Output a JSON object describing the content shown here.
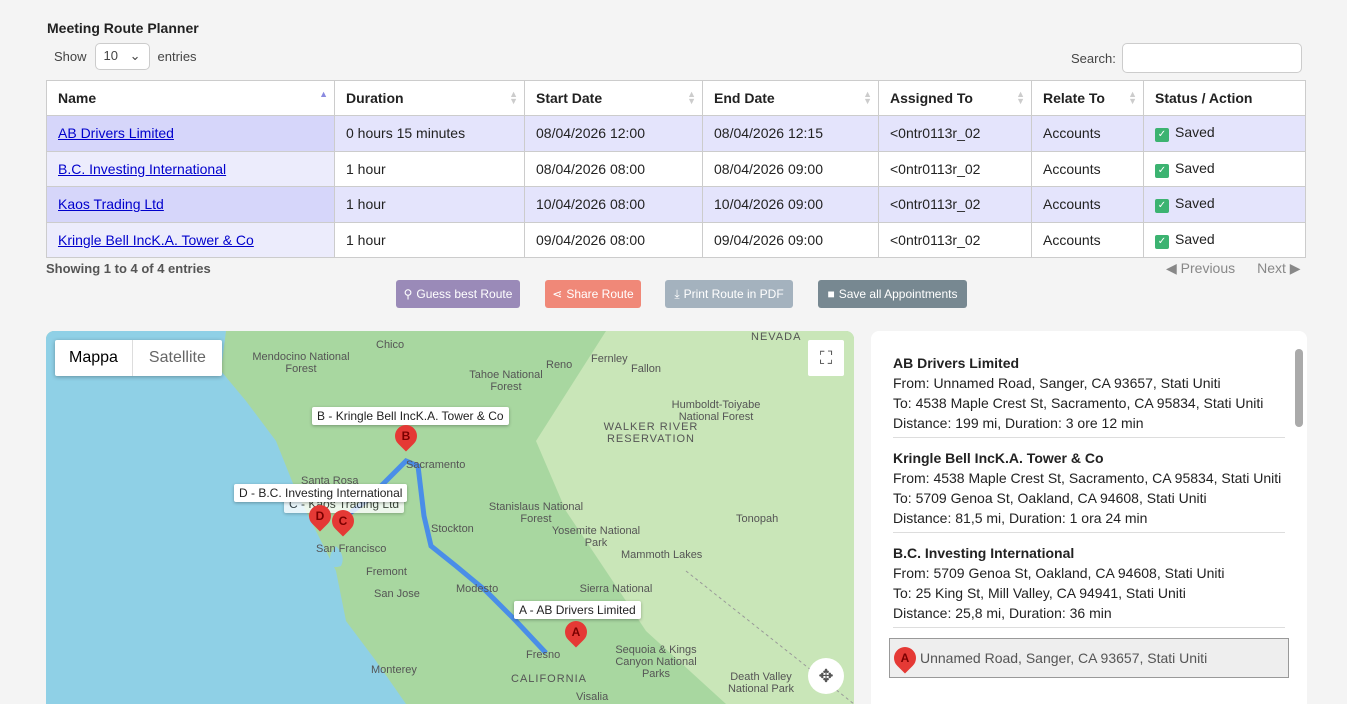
{
  "page_title": "Meeting Route Planner",
  "length": {
    "show": "Show",
    "value": "10",
    "entries": "entries"
  },
  "search": {
    "label": "Search:",
    "value": ""
  },
  "table": {
    "headers": [
      "Name",
      "Duration",
      "Start Date",
      "End Date",
      "Assigned To",
      "Relate To",
      "Status / Action"
    ],
    "rows": [
      {
        "name": "AB Drivers Limited",
        "duration": "0 hours 15 minutes",
        "start": "08/04/2026 12:00",
        "end": "08/04/2026 12:15",
        "assigned": "<0ntr0113r_02",
        "relate": "Accounts",
        "status": "Saved"
      },
      {
        "name": "B.C. Investing International",
        "duration": "1 hour",
        "start": "08/04/2026 08:00",
        "end": "08/04/2026 09:00",
        "assigned": "<0ntr0113r_02",
        "relate": "Accounts",
        "status": "Saved"
      },
      {
        "name": "Kaos Trading Ltd",
        "duration": "1 hour",
        "start": "10/04/2026 08:00",
        "end": "10/04/2026 09:00",
        "assigned": "<0ntr0113r_02",
        "relate": "Accounts",
        "status": "Saved"
      },
      {
        "name": "Kringle Bell IncK.A. Tower & Co",
        "duration": "1 hour",
        "start": "09/04/2026 08:00",
        "end": "09/04/2026 09:00",
        "assigned": "<0ntr0113r_02",
        "relate": "Accounts",
        "status": "Saved"
      }
    ]
  },
  "info": "Showing 1 to 4 of 4 entries",
  "pager": {
    "previous": "Previous",
    "next": "Next"
  },
  "buttons": {
    "guess": "Guess best Route",
    "share": "Share Route",
    "print": "Print Route in PDF",
    "save": "Save all Appointments"
  },
  "map": {
    "tabs": [
      "Mappa",
      "Satellite"
    ],
    "markers": [
      {
        "letter": "A",
        "label": "AB Drivers Limited"
      },
      {
        "letter": "B",
        "label": "Kringle Bell IncK.A. Tower & Co"
      },
      {
        "letter": "C",
        "label": "Kaos Trading Ltd"
      },
      {
        "letter": "D",
        "label": "B.C. Investing International"
      }
    ],
    "places": [
      "Chico",
      "Reno",
      "Fernley",
      "Fallon",
      "NEVADA",
      "Mendocino National Forest",
      "Tahoe National Forest",
      "Humboldt-Toiyabe National Forest",
      "WALKER RIVER RESERVATION",
      "Sacramento",
      "Santa Rosa",
      "Stockton",
      "Stanislaus National Forest",
      "Yosemite National Park",
      "San Francisco",
      "Fremont",
      "Modesto",
      "Mammoth Lakes",
      "Tonopah",
      "San Jose",
      "Sierra National",
      "Fresno",
      "Sequoia & Kings Canyon National Parks",
      "Monterey",
      "CALIFORNIA",
      "Death Valley National Park",
      "Visalia"
    ]
  },
  "directions": [
    {
      "title": "AB Drivers Limited",
      "from": "From: Unnamed Road, Sanger, CA 93657, Stati Uniti",
      "to": "To: 4538 Maple Crest St, Sacramento, CA 95834, Stati Uniti",
      "dist": "Distance: 199 mi, Duration: 3 ore 12 min"
    },
    {
      "title": "Kringle Bell IncK.A. Tower & Co",
      "from": "From: 4538 Maple Crest St, Sacramento, CA 95834, Stati Uniti",
      "to": "To: 5709 Genoa St, Oakland, CA 94608, Stati Uniti",
      "dist": "Distance: 81,5 mi, Duration: 1 ora 24 min"
    },
    {
      "title": "B.C. Investing International",
      "from": "From: 5709 Genoa St, Oakland, CA 94608, Stati Uniti",
      "to": "To: 25 King St, Mill Valley, CA 94941, Stati Uniti",
      "dist": "Distance: 25,8 mi, Duration: 36 min"
    }
  ],
  "start_point": {
    "letter": "A",
    "address": "Unnamed Road, Sanger, CA 93657, Stati Uniti"
  }
}
